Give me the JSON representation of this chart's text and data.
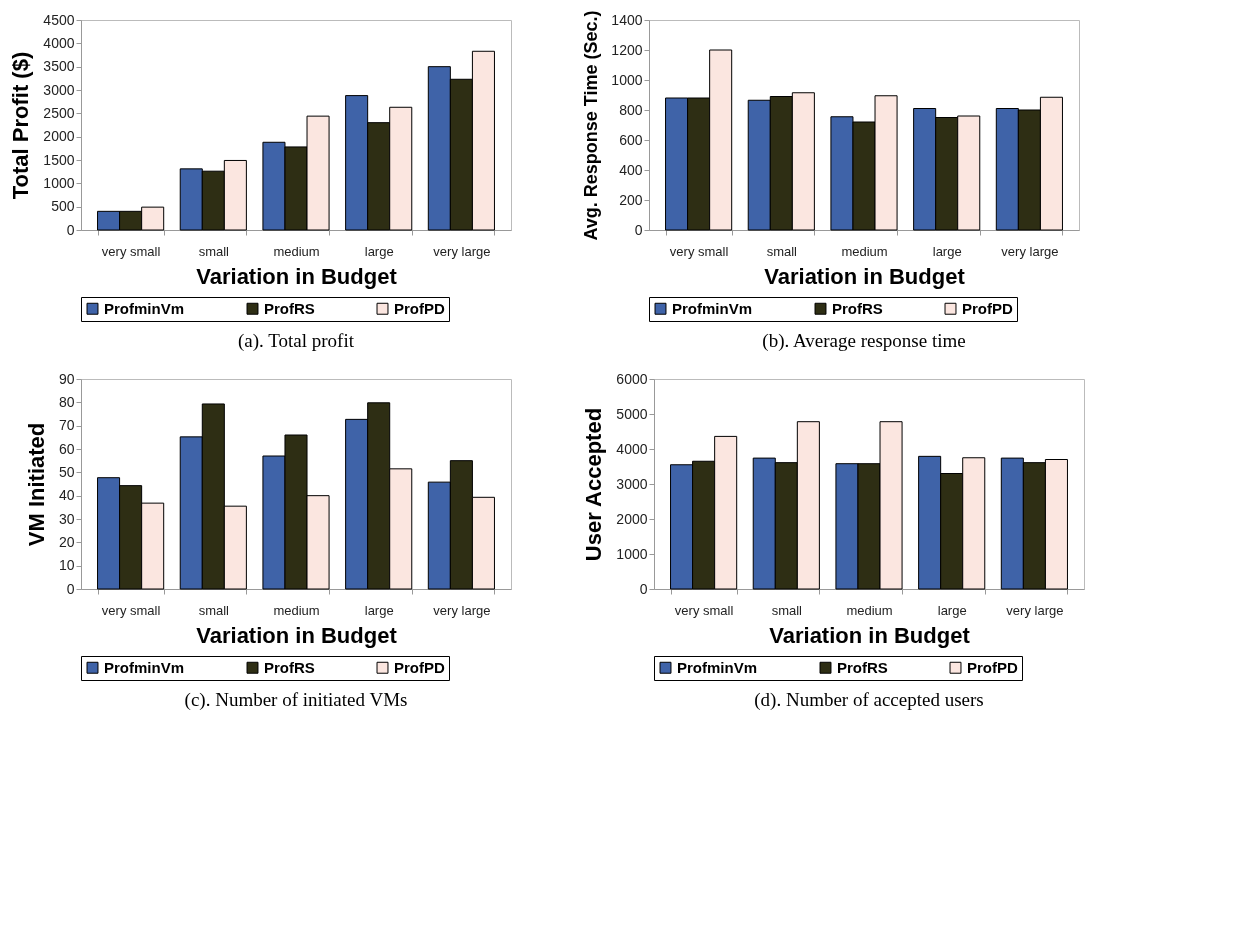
{
  "chart_data": [
    {
      "type": "bar",
      "title": "(a). Total profit",
      "xlabel": "Variation in Budget",
      "ylabel": "Total Profit ($)",
      "categories": [
        "very small",
        "small",
        "medium",
        "large",
        "very large"
      ],
      "ylim": [
        0,
        4500
      ],
      "yticks": [
        0,
        500,
        1000,
        1500,
        2000,
        2500,
        3000,
        3500,
        4000,
        4500
      ],
      "legend": "bottom",
      "series": [
        {
          "name": "ProfminVm",
          "color": "#3f63a8",
          "values": [
            400,
            1310,
            1880,
            2880,
            3500
          ]
        },
        {
          "name": "ProfRS",
          "color": "#2e2e14",
          "values": [
            400,
            1260,
            1780,
            2300,
            3230
          ]
        },
        {
          "name": "ProfPD",
          "color": "#fbe6e0",
          "values": [
            490,
            1490,
            2440,
            2630,
            3830
          ]
        }
      ]
    },
    {
      "type": "bar",
      "title": "(b). Average response time",
      "xlabel": "Variation in Budget",
      "ylabel": "Avg. Response Time (Sec.)",
      "categories": [
        "very small",
        "small",
        "medium",
        "large",
        "very large"
      ],
      "ylim": [
        0,
        1400
      ],
      "yticks": [
        0,
        200,
        400,
        600,
        800,
        1000,
        1200,
        1400
      ],
      "legend": "bottom",
      "series": [
        {
          "name": "ProfminVm",
          "color": "#3f63a8",
          "values": [
            880,
            865,
            755,
            810,
            810
          ]
        },
        {
          "name": "ProfRS",
          "color": "#2e2e14",
          "values": [
            880,
            890,
            720,
            750,
            800
          ]
        },
        {
          "name": "ProfPD",
          "color": "#fbe6e0",
          "values": [
            1200,
            915,
            895,
            760,
            885
          ]
        }
      ]
    },
    {
      "type": "bar",
      "title": "(c).  Number of initiated VMs",
      "xlabel": "Variation in Budget",
      "ylabel": "VM Initiated",
      "categories": [
        "very small",
        "small",
        "medium",
        "large",
        "very large"
      ],
      "ylim": [
        0,
        90
      ],
      "yticks": [
        0,
        10,
        20,
        30,
        40,
        50,
        60,
        70,
        80,
        90
      ],
      "legend": "bottom",
      "series": [
        {
          "name": "ProfminVm",
          "color": "#3f63a8",
          "values": [
            47.7,
            65.2,
            57,
            72.7,
            45.8
          ]
        },
        {
          "name": "ProfRS",
          "color": "#2e2e14",
          "values": [
            44.3,
            79.3,
            66,
            79.8,
            55
          ]
        },
        {
          "name": "ProfPD",
          "color": "#fbe6e0",
          "values": [
            36.8,
            35.5,
            40,
            51.5,
            39.3
          ]
        }
      ]
    },
    {
      "type": "bar",
      "title": "(d).  Number of accepted users",
      "xlabel": "Variation in Budget",
      "ylabel": "User Accepted",
      "categories": [
        "very small",
        "small",
        "medium",
        "large",
        "very large"
      ],
      "ylim": [
        0,
        6000
      ],
      "yticks": [
        0,
        1000,
        2000,
        3000,
        4000,
        5000,
        6000
      ],
      "legend": "bottom",
      "series": [
        {
          "name": "ProfminVm",
          "color": "#3f63a8",
          "values": [
            3550,
            3740,
            3580,
            3790,
            3740
          ]
        },
        {
          "name": "ProfRS",
          "color": "#2e2e14",
          "values": [
            3650,
            3610,
            3580,
            3300,
            3610
          ]
        },
        {
          "name": "ProfPD",
          "color": "#fbe6e0",
          "values": [
            4360,
            4780,
            4780,
            3750,
            3700
          ]
        }
      ]
    }
  ]
}
